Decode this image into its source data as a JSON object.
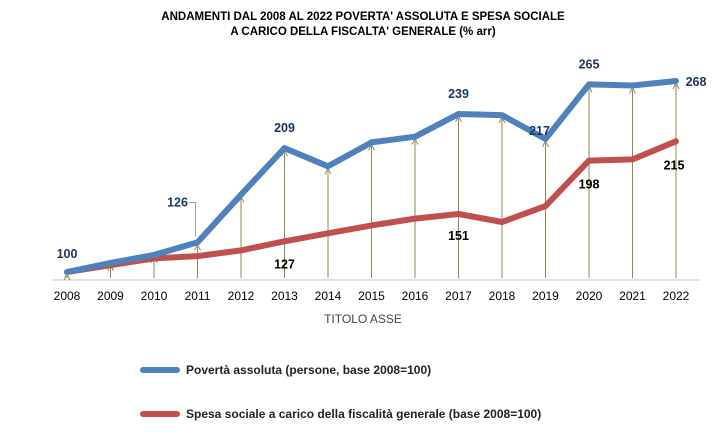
{
  "chart_data": {
    "type": "line",
    "title_lines": [
      "ANDAMENTI DAL 2008 AL 2022 POVERTA' ASSOLUTA  E SPESA SOCIALE",
      "A CARICO DELLA FISCALTA' GENERALE  (% arr)"
    ],
    "xlabel": "TITOLO ASSE",
    "ylabel": "",
    "categories": [
      "2008",
      "2009",
      "2010",
      "2011",
      "2012",
      "2013",
      "2014",
      "2015",
      "2016",
      "2017",
      "2018",
      "2019",
      "2020",
      "2021",
      "2022"
    ],
    "ylim": [
      95,
      285
    ],
    "grid": false,
    "legend_position": "bottom",
    "series": [
      {
        "name": "Povertà assoluta (persone, base 2008=100)",
        "color": "#4f81bd",
        "values": [
          100,
          108,
          115,
          126,
          168,
          209,
          193,
          214,
          219,
          239,
          238,
          217,
          265,
          264,
          268
        ],
        "labels": {
          "0": "100",
          "3": "126",
          "5": "209",
          "9": "239",
          "11": "217",
          "12": "265",
          "14": "268"
        },
        "label_color": "#17375e"
      },
      {
        "name": "Spesa sociale a carico della fiscalità generale (base 2008=100)",
        "color": "#c0504d",
        "values": [
          100,
          106,
          112,
          114,
          119,
          127,
          134,
          141,
          147,
          151,
          144,
          158,
          198,
          199,
          215
        ],
        "labels": {
          "5": "127",
          "9": "151",
          "12": "198",
          "14": "215"
        },
        "label_color": "#000000"
      }
    ]
  }
}
